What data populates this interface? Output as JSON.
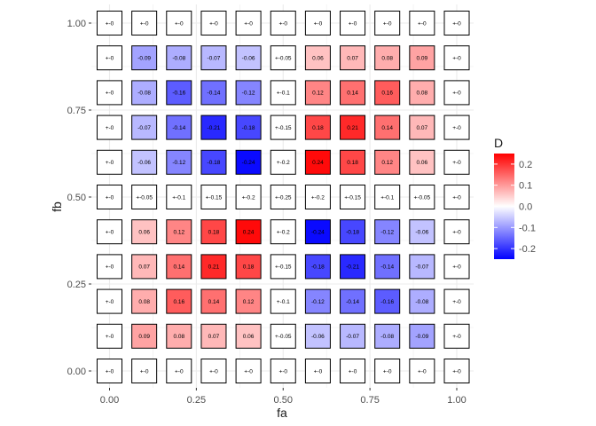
{
  "chart_data": {
    "type": "heatmap",
    "xlabel": "fa",
    "ylabel": "fb",
    "x_ticks": [
      "0.00",
      "0.25",
      "0.50",
      "0.75",
      "1.00"
    ],
    "y_ticks": [
      "0.00",
      "0.25",
      "0.50",
      "0.75",
      "1.00"
    ],
    "xlim": [
      0,
      1
    ],
    "ylim": [
      0,
      1
    ],
    "x": [
      0,
      0.1,
      0.2,
      0.3,
      0.4,
      0.5,
      0.6,
      0.7,
      0.8,
      0.9,
      1.0
    ],
    "y": [
      0,
      0.1,
      0.2,
      0.3,
      0.4,
      0.5,
      0.6,
      0.7,
      0.8,
      0.9,
      1.0
    ],
    "values": [
      [
        0,
        0,
        0,
        0,
        0,
        0,
        0,
        0,
        0,
        0,
        0
      ],
      [
        0,
        0.09,
        0.08,
        0.07,
        0.06,
        0,
        -0.06,
        -0.07,
        -0.08,
        -0.09,
        0
      ],
      [
        0,
        0.08,
        0.16,
        0.14,
        0.12,
        0,
        -0.12,
        -0.14,
        -0.16,
        -0.08,
        0
      ],
      [
        0,
        0.07,
        0.14,
        0.21,
        0.18,
        0,
        -0.18,
        -0.21,
        -0.14,
        -0.07,
        0
      ],
      [
        0,
        0.06,
        0.12,
        0.18,
        0.24,
        0,
        -0.24,
        -0.18,
        -0.12,
        -0.06,
        0
      ],
      [
        0,
        0,
        0,
        0,
        0,
        0,
        0,
        0,
        0,
        0,
        0
      ],
      [
        0,
        -0.06,
        -0.12,
        -0.18,
        -0.24,
        0,
        0.24,
        0.18,
        0.12,
        0.06,
        0
      ],
      [
        0,
        -0.07,
        -0.14,
        -0.21,
        -0.18,
        0,
        0.18,
        0.21,
        0.14,
        0.07,
        0
      ],
      [
        0,
        -0.08,
        -0.16,
        -0.14,
        -0.12,
        0,
        0.12,
        0.14,
        0.16,
        0.08,
        0
      ],
      [
        0,
        -0.09,
        -0.08,
        -0.07,
        -0.06,
        0,
        0.06,
        0.07,
        0.08,
        0.09,
        0
      ],
      [
        0,
        0,
        0,
        0,
        0,
        0,
        0,
        0,
        0,
        0,
        0
      ]
    ],
    "labels": [
      [
        "+-0",
        "+-0",
        "+-0",
        "+-0",
        "+-0",
        "+-0",
        "+-0",
        "+-0",
        "+-0",
        "+-0",
        "+-0"
      ],
      [
        "+-0",
        "0.09",
        "0.08",
        "0.07",
        "0.06",
        "+-0.05",
        "-0.06",
        "-0.07",
        "-0.08",
        "-0.09",
        "+-0"
      ],
      [
        "+-0",
        "0.08",
        "0.16",
        "0.14",
        "0.12",
        "+-0.1",
        "-0.12",
        "-0.14",
        "-0.16",
        "-0.08",
        "+-0"
      ],
      [
        "+-0",
        "0.07",
        "0.14",
        "0.21",
        "0.18",
        "+-0.15",
        "-0.18",
        "-0.21",
        "-0.14",
        "-0.07",
        "+-0"
      ],
      [
        "+-0",
        "0.06",
        "0.12",
        "0.18",
        "0.24",
        "+-0.2",
        "-0.24",
        "-0.18",
        "-0.12",
        "-0.06",
        "+-0"
      ],
      [
        "+-0",
        "+-0.05",
        "+-0.1",
        "+-0.15",
        "+-0.2",
        "+-0.25",
        "+-0.2",
        "+-0.15",
        "+-0.1",
        "+-0.05",
        "+-0"
      ],
      [
        "+-0",
        "-0.06",
        "-0.12",
        "-0.18",
        "-0.24",
        "+-0.2",
        "0.24",
        "0.18",
        "0.12",
        "0.06",
        "+-0"
      ],
      [
        "+-0",
        "-0.07",
        "-0.14",
        "-0.21",
        "-0.18",
        "+-0.15",
        "0.18",
        "0.21",
        "0.14",
        "0.07",
        "+-0"
      ],
      [
        "+-0",
        "-0.08",
        "-0.16",
        "-0.14",
        "-0.12",
        "+-0.1",
        "0.12",
        "0.14",
        "0.16",
        "0.08",
        "+-0"
      ],
      [
        "+-0",
        "-0.09",
        "-0.08",
        "-0.07",
        "-0.06",
        "+-0.05",
        "0.06",
        "0.07",
        "0.08",
        "0.09",
        "+-0"
      ],
      [
        "+-0",
        "+-0",
        "+-0",
        "+-0",
        "+-0",
        "+-0",
        "+-0",
        "+-0",
        "+-0",
        "+-0",
        "+-0"
      ]
    ],
    "legend": {
      "title": "D",
      "ticks": [
        "0.2",
        "0.1",
        "0.0",
        "-0.1",
        "-0.2"
      ],
      "tick_values": [
        0.2,
        0.1,
        0.0,
        -0.1,
        -0.2
      ],
      "range": [
        -0.25,
        0.25
      ],
      "placement": "right"
    },
    "colors": {
      "high": "#ff0000",
      "mid": "#ffffff",
      "low": "#0000ff",
      "tile_border": "#000000",
      "panel_background": "#ffffff",
      "grid": "#ebebeb"
    },
    "grid": true
  }
}
